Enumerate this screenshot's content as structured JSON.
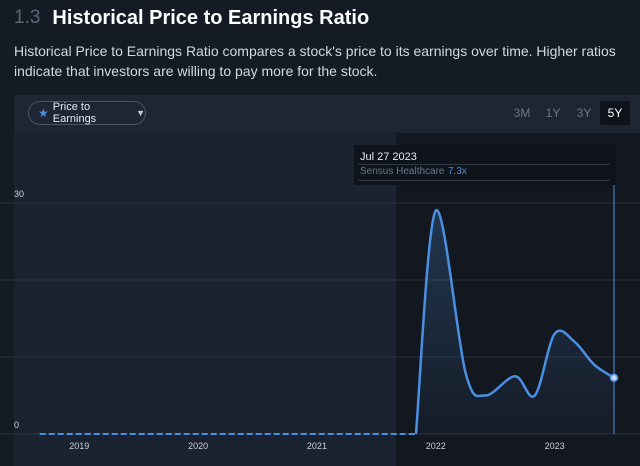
{
  "section": {
    "number": "1.3",
    "title": "Historical Price to Earnings Ratio",
    "description": "Historical Price to Earnings Ratio compares a stock's price to its earnings over time. Higher ratios indicate that investors are willing to pay more for the stock."
  },
  "toolbar": {
    "metric_label": "Price to Earnings",
    "metric_icon": "star-icon",
    "dropdown_icon": "chevron-down-icon",
    "ranges": [
      "3M",
      "1Y",
      "3Y",
      "5Y"
    ],
    "active_range": "5Y"
  },
  "tooltip": {
    "date": "Jul 27 2023",
    "series": "Sensus Healthcare",
    "value": "7.3x"
  },
  "colors": {
    "line": "#4a90e2",
    "background": "#151b24",
    "panel": "#1c2330"
  },
  "chart_data": {
    "type": "area",
    "series": [
      {
        "name": "Sensus Healthcare",
        "x": [
          "2018-09",
          "2019-01",
          "2019-06",
          "2020-01",
          "2020-06",
          "2021-01",
          "2021-06",
          "2021-09",
          "2021-11",
          "2022-01",
          "2022-04",
          "2022-06",
          "2022-09",
          "2022-11",
          "2023-01",
          "2023-03",
          "2023-05",
          "2023-07"
        ],
        "values": [
          0,
          0,
          0,
          0,
          0,
          0,
          0,
          0,
          0,
          29,
          8,
          5,
          7.5,
          5,
          13,
          12,
          9,
          7.3
        ]
      }
    ],
    "x_tick_labels": [
      "2019",
      "2020",
      "2021",
      "2022",
      "2023"
    ],
    "y_tick_labels": [
      "0",
      "30"
    ],
    "ylim": [
      0,
      30
    ],
    "grid": true,
    "note_zero_segment_dashed": true
  }
}
